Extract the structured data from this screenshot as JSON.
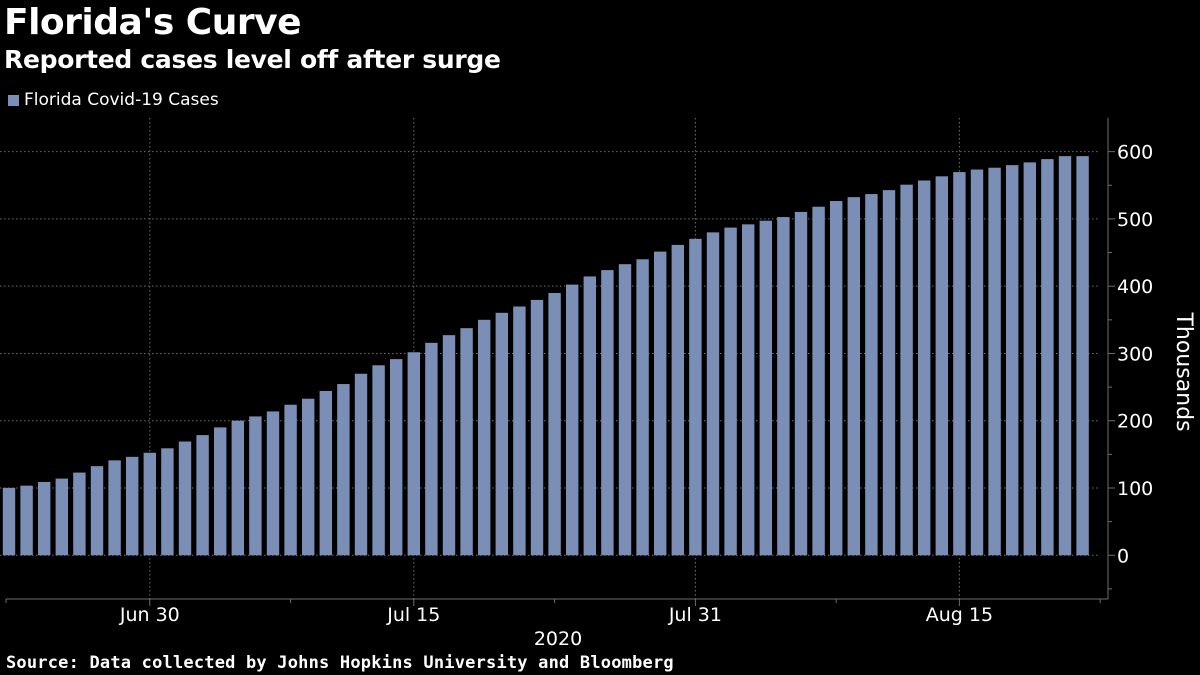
{
  "title": "Florida's Curve",
  "subtitle": "Reported cases level off after surge",
  "source": "Source: Data collected by Johns Hopkins University and Bloomberg",
  "colors": {
    "background": "#000000",
    "bar": "#7b8fb6",
    "grid": "#6e6e6e",
    "text": "#ffffff"
  },
  "chart_data": {
    "type": "bar",
    "legend": [
      "Florida Covid-19 Cases"
    ],
    "legend_position": "top-left",
    "series": [
      {
        "name": "Florida Covid-19 Cases",
        "values": [
          100.2,
          103.5,
          109.0,
          114.0,
          122.9,
          132.5,
          141.1,
          146.3,
          152.4,
          159.0,
          169.1,
          178.6,
          190.1,
          200.1,
          206.4,
          213.8,
          223.8,
          232.7,
          244.2,
          254.5,
          269.8,
          282.4,
          291.6,
          301.8,
          315.8,
          327.2,
          337.6,
          350.0,
          360.4,
          369.8,
          379.6,
          389.9,
          402.3,
          414.5,
          423.9,
          432.7,
          440.0,
          451.4,
          461.4,
          470.4,
          480.0,
          487.1,
          491.9,
          497.3,
          502.7,
          510.4,
          518.1,
          526.6,
          532.3,
          536.9,
          542.8,
          550.9,
          557.1,
          563.3,
          569.6,
          573.4,
          576.1,
          579.9,
          584.0,
          588.9,
          593.3,
          593.3
        ]
      }
    ],
    "x_range": [
      "2020-06-23",
      "2020-08-23"
    ],
    "x_ticks": [
      {
        "label": "Jun 30",
        "index": 8
      },
      {
        "label": "Jul 15",
        "index": 23
      },
      {
        "label": "Jul 31",
        "index": 39
      },
      {
        "label": "Aug 15",
        "index": 54
      }
    ],
    "x_minor_tick_indices": [
      -0.5,
      16,
      31,
      47,
      62
    ],
    "xlabel": "2020",
    "ylabel": "Thousands",
    "ylim": [
      -65,
      650
    ],
    "y_ticks": [
      0,
      100,
      200,
      300,
      400,
      500,
      600
    ],
    "y_axis_side": "right",
    "grid": true
  }
}
